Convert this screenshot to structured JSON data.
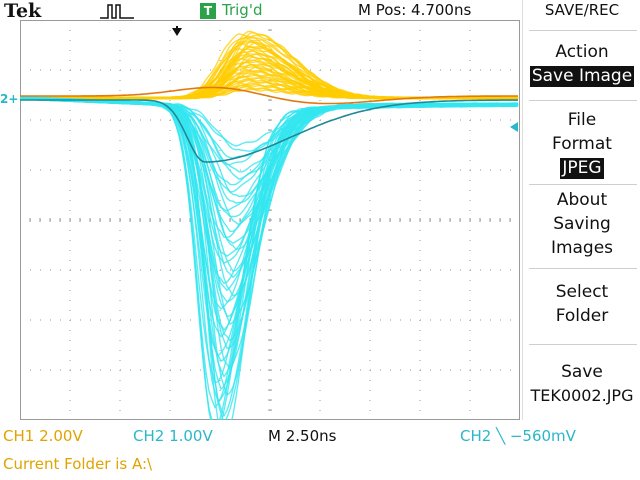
{
  "topbar": {
    "brand": "Tek",
    "trigger_badge": "T",
    "trigger_status": "Trig'd",
    "m_pos": "M Pos: 4.700ns"
  },
  "menu": {
    "title": "SAVE/REC",
    "action_label": "Action",
    "action_value": "Save Image",
    "file_format_label1": "File",
    "file_format_label2": "Format",
    "file_format_value": "JPEG",
    "about_line1": "About",
    "about_line2": "Saving",
    "about_line3": "Images",
    "select_line1": "Select",
    "select_line2": "Folder",
    "save_line1": "Save",
    "save_line2": "TEK0002.JPG"
  },
  "markers": {
    "ch2_ground": "2+"
  },
  "status": {
    "ch1": "CH1  2.00V",
    "ch2": "CH2  1.00V",
    "timebase": "M 2.50ns",
    "trigger": "CH2 ╲ −560mV",
    "folder": "Current Folder is A:\\"
  },
  "colors": {
    "ch1": "#ffcc00",
    "ch2": "#33e6f0",
    "grid": "#9a9a9a"
  }
}
